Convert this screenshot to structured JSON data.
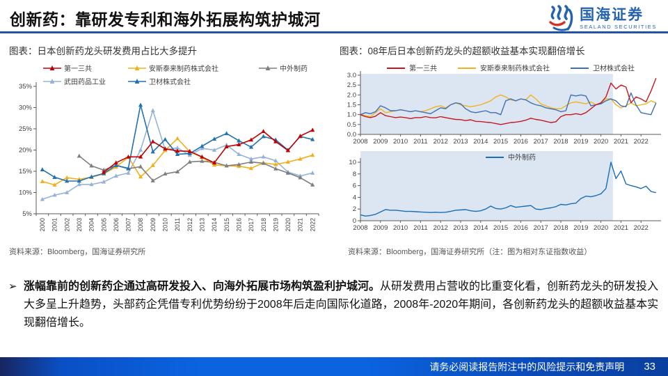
{
  "header": {
    "title": "创新药：靠研发专利和海外拓展构筑护城河",
    "logo_cn": "国海证券",
    "logo_en": "SEALAND SECURITIES"
  },
  "figures": {
    "left_caption": "图表：日本创新药龙头研发费用占比大多提升",
    "right_caption": "图表：08年后日本创新药龙头的超额收益基本实现翻倍增长",
    "left_source": "资料来源：Bloomberg，国海证券研究所",
    "right_source": "资料来源：Bloomberg，国海证券研究所（注：图为相对东证指数收益）"
  },
  "body": {
    "bullet": "➢",
    "lead": "涨幅靠前的创新药企通过高研发投入、向海外拓展市场构筑盈利护城河。",
    "rest": "从研发费用占营收的比重变化看，创新药龙头的研发投入大多呈上升趋势，头部药企凭借专利优势纷纷于2008年后走向国际化道路，2008年-2020年期间，各创新药龙头的超额收益基本实现翻倍增长。"
  },
  "footer": {
    "disclaimer": "请务必阅读报告附注中的风险提示和免责声明",
    "page": "33"
  },
  "colors": {
    "header_rule": "#2154A3",
    "shade": "#DCE6F2",
    "axis": "#595959"
  },
  "chart_data": [
    {
      "id": "chart0",
      "type": "line",
      "title": "日本创新药龙头研发费用占比大多提升",
      "x_type": "category",
      "categories": [
        "2000",
        "2001",
        "2002",
        "2003",
        "2004",
        "2005",
        "2006",
        "2007",
        "2008",
        "2009",
        "2010",
        "2011",
        "2012",
        "2013",
        "2014",
        "2015",
        "2016",
        "2017",
        "2018",
        "2019",
        "2020",
        "2021",
        "2022"
      ],
      "ylim": [
        5,
        35
      ],
      "y_ticks": [
        5,
        10,
        15,
        20,
        25,
        30,
        35
      ],
      "y_suffix": "%",
      "markers": true,
      "series": [
        {
          "name": "第一三共",
          "color": "#C00000",
          "z": 5,
          "values": [
            null,
            null,
            null,
            null,
            null,
            14.8,
            17.0,
            18.4,
            18.4,
            22.0,
            20.3,
            19.8,
            19.7,
            18.4,
            17.0,
            20.8,
            21.3,
            22.4,
            24.4,
            22.0,
            19.9,
            23.3,
            24.7
          ]
        },
        {
          "name": "安斯泰来制药株式会社",
          "color": "#F0B01C",
          "z": 2,
          "values": [
            12.6,
            11.8,
            13.5,
            13.1,
            13.6,
            14.4,
            16.0,
            18.3,
            13.7,
            16.4,
            19.9,
            22.7,
            19.6,
            18.3,
            16.5,
            16.3,
            16.2,
            15.7,
            17.0,
            16.6,
            17.2,
            17.9,
            18.8
          ]
        },
        {
          "name": "中外制药",
          "color": "#7F7F7F",
          "z": 3,
          "values": [
            null,
            null,
            null,
            18.6,
            16.3,
            15.3,
            16.4,
            15.6,
            16.1,
            12.8,
            14.4,
            14.9,
            17.2,
            17.4,
            17.1,
            16.3,
            16.6,
            17.2,
            16.9,
            15.6,
            14.6,
            13.5,
            11.8
          ]
        },
        {
          "name": "武田药品工业",
          "color": "#95B3D7",
          "z": 1,
          "values": [
            8.4,
            9.4,
            10.0,
            11.9,
            11.9,
            12.5,
            13.9,
            14.6,
            20.0,
            29.3,
            20.1,
            20.5,
            18.8,
            20.4,
            20.0,
            21.2,
            19.0,
            17.9,
            18.4,
            17.5,
            14.8,
            13.9,
            14.6
          ]
        },
        {
          "name": "卫材株式会社",
          "color": "#2272B2",
          "z": 4,
          "values": [
            15.4,
            13.6,
            12.7,
            12.7,
            13.7,
            14.5,
            16.4,
            15.7,
            30.6,
            19.6,
            22.5,
            19.0,
            19.2,
            20.9,
            22.6,
            23.9,
            22.2,
            20.7,
            23.2,
            22.4,
            20.0,
            23.2,
            22.5
          ]
        }
      ]
    },
    {
      "id": "chart1",
      "type": "line",
      "title": "08年后日本创新药龙头的超额收益（相对东证指数）",
      "x_type": "linear",
      "x_start": 2008,
      "x_step": 0.25,
      "x_end": 2023,
      "x_ticks": [
        2008,
        2009,
        2010,
        2011,
        2012,
        2013,
        2014,
        2015,
        2016,
        2017,
        2018,
        2019,
        2020,
        2021,
        2022
      ],
      "ylim": [
        0,
        3
      ],
      "y_ticks": [
        0,
        0.5,
        1,
        1.5,
        2,
        2.5,
        3
      ],
      "y_decimals": 1,
      "legend_inside": true,
      "shade": {
        "x0": 2008,
        "x1": 2020.6,
        "color": "#DCE6F2"
      },
      "series": [
        {
          "name": "第一三共",
          "color": "#C8161D",
          "z": 3,
          "values": [
            1.0,
            0.9,
            0.85,
            0.92,
            1.1,
            0.95,
            0.9,
            0.85,
            0.88,
            0.85,
            0.8,
            0.85,
            0.85,
            0.9,
            0.85,
            0.84,
            0.9,
            0.85,
            0.8,
            0.76,
            0.75,
            0.7,
            0.74,
            0.66,
            0.65,
            0.62,
            0.6,
            0.55,
            0.5,
            0.55,
            0.6,
            0.62,
            0.66,
            0.72,
            0.82,
            0.76,
            0.72,
            0.66,
            0.6,
            0.64,
            0.9,
            1.0,
            1.0,
            1.05,
            1.0,
            1.1,
            1.3,
            1.5,
            1.6,
            1.9,
            2.6,
            2.3,
            2.5,
            2.4,
            1.6,
            1.9,
            1.8,
            1.65,
            2.2,
            2.85
          ]
        },
        {
          "name": "安斯泰来制药株式会社",
          "color": "#EFB320",
          "z": 1,
          "values": [
            1.0,
            0.95,
            0.9,
            1.1,
            1.3,
            1.1,
            1.15,
            1.2,
            1.25,
            1.2,
            1.15,
            1.2,
            1.15,
            1.2,
            1.3,
            1.4,
            1.45,
            1.35,
            1.5,
            1.6,
            1.5,
            1.45,
            1.4,
            1.45,
            1.5,
            1.6,
            1.7,
            1.9,
            2.0,
            1.9,
            1.75,
            1.7,
            1.8,
            1.75,
            2.0,
            1.8,
            1.55,
            1.45,
            1.35,
            1.3,
            1.3,
            1.45,
            1.6,
            1.65,
            1.6,
            1.55,
            1.65,
            1.5,
            1.55,
            1.8,
            1.8,
            1.5,
            1.35,
            1.45,
            1.6,
            1.45,
            1.5,
            1.55,
            1.7,
            1.6
          ]
        },
        {
          "name": "卫材株式会社",
          "color": "#3F6FB5",
          "z": 2,
          "values": [
            1.0,
            1.1,
            1.05,
            1.15,
            1.45,
            1.35,
            1.2,
            1.2,
            1.25,
            1.2,
            1.15,
            1.2,
            1.15,
            1.1,
            1.05,
            1.2,
            1.35,
            1.3,
            1.5,
            1.6,
            1.55,
            1.3,
            1.15,
            1.1,
            1.15,
            1.2,
            1.1,
            1.1,
            1.0,
            1.7,
            1.8,
            1.7,
            1.8,
            1.75,
            1.6,
            1.5,
            1.45,
            1.35,
            1.3,
            1.25,
            1.15,
            1.2,
            2.0,
            1.95,
            2.0,
            1.95,
            1.45,
            1.5,
            1.55,
            1.7,
            1.8,
            1.7,
            1.45,
            1.4,
            2.1,
            1.5,
            1.1,
            1.05,
            1.0,
            1.6
          ]
        }
      ]
    },
    {
      "id": "chart2",
      "type": "line",
      "title": "中外制药超额收益（相对东证指数）",
      "x_type": "linear",
      "x_start": 2008,
      "x_step": 0.25,
      "x_end": 2023,
      "x_ticks": [
        2008,
        2009,
        2010,
        2011,
        2012,
        2013,
        2014,
        2015,
        2016,
        2017,
        2018,
        2019,
        2020,
        2021,
        2022
      ],
      "ylim": [
        0,
        10
      ],
      "y_ticks": [
        0,
        2,
        4,
        6,
        8,
        10
      ],
      "y_decimals": 0,
      "legend_inside": true,
      "shade": {
        "x0": 2008,
        "x1": 2020.6,
        "color": "#DCE6F2"
      },
      "series": [
        {
          "name": "中外制药",
          "color": "#1A6CB5",
          "z": 1,
          "values": [
            1.0,
            0.8,
            0.9,
            1.1,
            1.5,
            1.9,
            1.8,
            1.8,
            1.7,
            1.6,
            1.6,
            1.55,
            1.5,
            1.45,
            1.4,
            1.45,
            1.4,
            1.45,
            1.6,
            1.8,
            1.85,
            1.9,
            1.7,
            1.6,
            1.7,
            2.0,
            2.5,
            2.1,
            2.0,
            2.2,
            2.6,
            2.3,
            2.4,
            2.5,
            2.6,
            2.0,
            1.9,
            2.1,
            2.2,
            2.4,
            2.8,
            2.7,
            2.9,
            3.0,
            3.8,
            4.2,
            4.1,
            4.3,
            4.6,
            5.5,
            10.0,
            7.2,
            8.5,
            6.3,
            6.0,
            5.8,
            5.5,
            5.9,
            5.0,
            4.8
          ]
        }
      ]
    }
  ]
}
